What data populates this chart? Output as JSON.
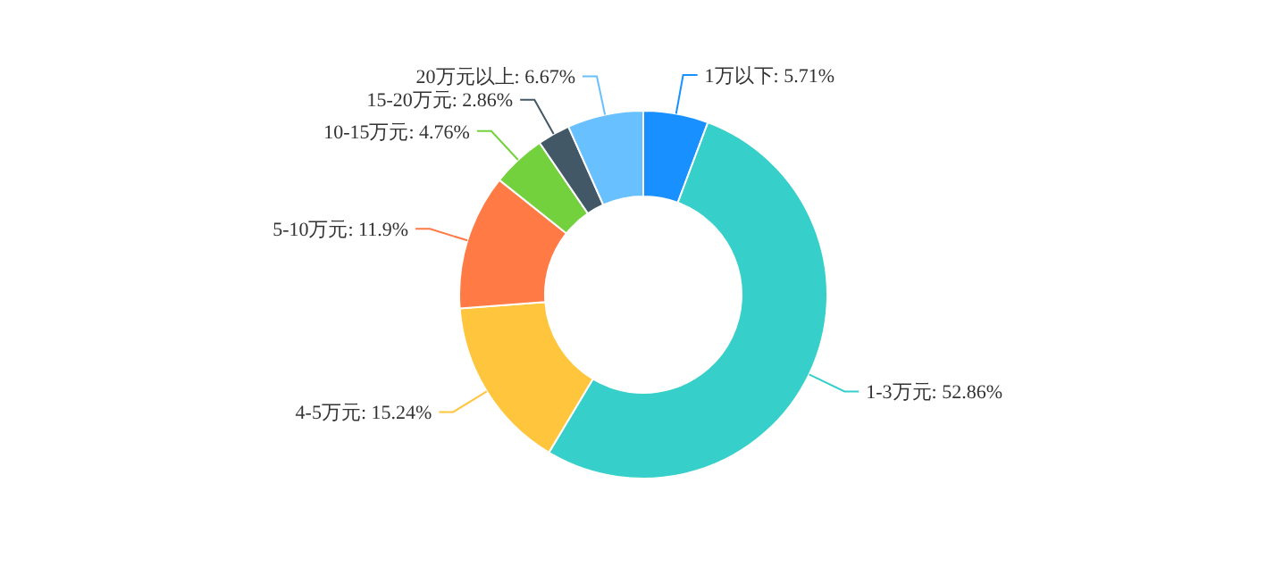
{
  "chart_data": {
    "type": "donut",
    "categories": [
      "1万以下",
      "1-3万元",
      "4-5万元",
      "5-10万元",
      "10-15万元",
      "15-20万元",
      "20万元以上"
    ],
    "values": [
      5.71,
      52.86,
      15.24,
      11.9,
      4.76,
      2.86,
      6.67
    ],
    "value_labels": [
      "5.71%",
      "52.86%",
      "15.24%",
      "11.9%",
      "4.76%",
      "2.86%",
      "6.67%"
    ],
    "colors": [
      "#1890ff",
      "#36cfc9",
      "#ffc53d",
      "#ff7a45",
      "#73d13d",
      "#435866",
      "#69c0ff"
    ]
  }
}
